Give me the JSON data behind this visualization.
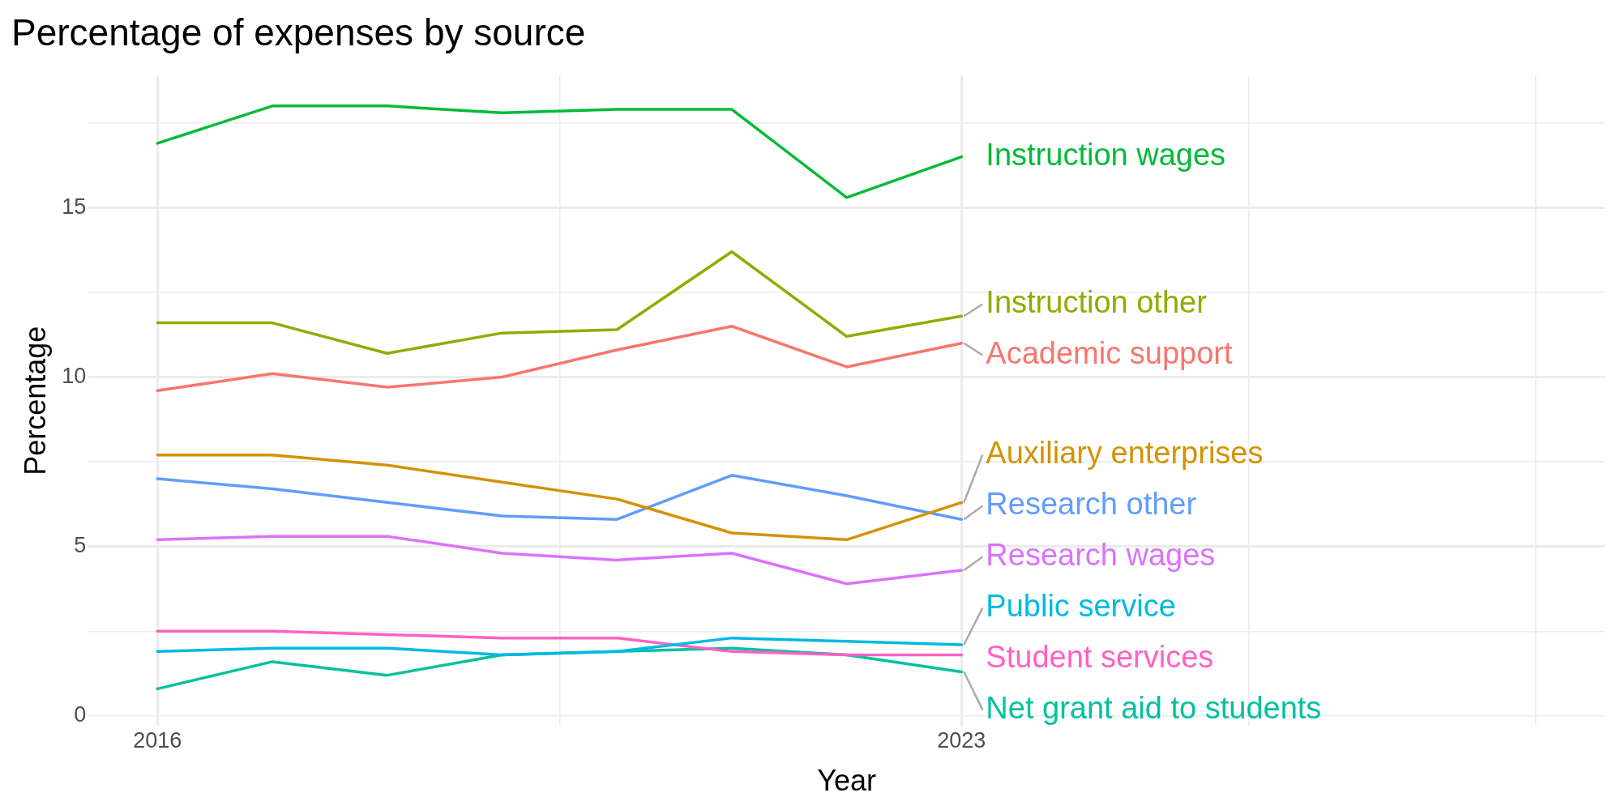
{
  "chart_data": {
    "type": "line",
    "title": "Percentage of expenses by source",
    "xlabel": "Year",
    "ylabel": "Percentage",
    "x": [
      2016,
      2017,
      2018,
      2019,
      2020,
      2021,
      2022,
      2023
    ],
    "xlim": [
      2015.4,
      2028.6
    ],
    "xticks": [
      2016,
      {
        "value": 2019.5,
        "label": null
      },
      2023,
      {
        "value": 2025.5,
        "label": null
      },
      {
        "value": 2028,
        "label": null
      }
    ],
    "ylim": [
      -0.3,
      18.9
    ],
    "yticks": [
      0,
      {
        "value": 2.5,
        "label": null
      },
      5,
      {
        "value": 7.5,
        "label": null
      },
      10,
      {
        "value": 12.5,
        "label": null
      },
      15,
      {
        "value": 17.5,
        "label": null
      }
    ],
    "grid": true,
    "legend": false,
    "marker": "none",
    "line_style": "solid",
    "series": [
      {
        "name": "Instruction wages",
        "color": "#00ba38",
        "values": [
          16.9,
          18.0,
          18.0,
          17.8,
          17.9,
          17.9,
          15.3,
          16.5
        ]
      },
      {
        "name": "Instruction other",
        "color": "#93aa00",
        "values": [
          11.6,
          11.6,
          10.7,
          11.3,
          11.4,
          13.7,
          11.2,
          11.8
        ]
      },
      {
        "name": "Academic support",
        "color": "#f8766d",
        "values": [
          9.6,
          10.1,
          9.7,
          10.0,
          10.8,
          11.5,
          10.3,
          11.0
        ]
      },
      {
        "name": "Auxiliary enterprises",
        "color": "#d39200",
        "values": [
          7.7,
          7.7,
          7.4,
          6.9,
          6.4,
          5.4,
          5.2,
          6.3
        ]
      },
      {
        "name": "Research other",
        "color": "#619cff",
        "values": [
          7.0,
          6.7,
          6.3,
          5.9,
          5.8,
          7.1,
          6.5,
          5.8
        ]
      },
      {
        "name": "Research wages",
        "color": "#db72fb",
        "values": [
          5.2,
          5.3,
          5.3,
          4.8,
          4.6,
          4.8,
          3.9,
          4.3
        ]
      },
      {
        "name": "Public service",
        "color": "#00b9e3",
        "values": [
          1.9,
          2.0,
          2.0,
          1.8,
          1.9,
          2.3,
          2.2,
          2.1
        ]
      },
      {
        "name": "Student services",
        "color": "#ff61c3",
        "values": [
          2.5,
          2.5,
          2.4,
          2.3,
          2.3,
          1.9,
          1.8,
          1.8
        ]
      },
      {
        "name": "Net grant aid to students",
        "color": "#00c19f",
        "values": [
          0.8,
          1.6,
          1.2,
          1.8,
          1.9,
          2.0,
          1.8,
          1.3
        ]
      }
    ]
  }
}
